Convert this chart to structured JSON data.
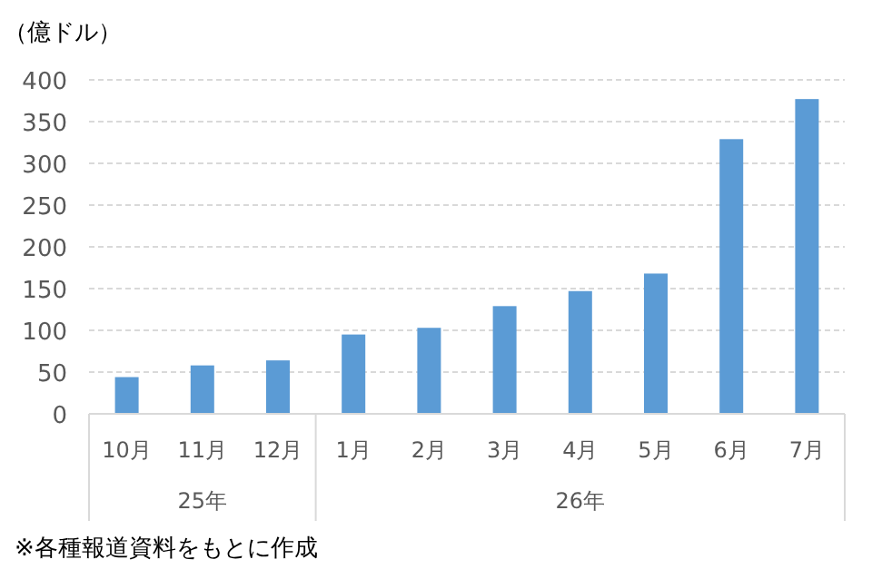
{
  "chart_data": {
    "type": "bar",
    "ylabel": "（億ドル）",
    "categories": [
      "10月",
      "11月",
      "12月",
      "1月",
      "2月",
      "3月",
      "4月",
      "5月",
      "6月",
      "7月"
    ],
    "values": [
      44,
      58,
      64,
      95,
      103,
      129,
      147,
      168,
      329,
      377
    ],
    "color": "#5b9bd5",
    "ylim": [
      0,
      400
    ],
    "yticks": [
      0,
      50,
      100,
      150,
      200,
      250,
      300,
      350,
      400
    ],
    "grid": "y",
    "annotations": [
      "25年",
      "26年",
      "※各種報道資料をもとに作成"
    ]
  }
}
